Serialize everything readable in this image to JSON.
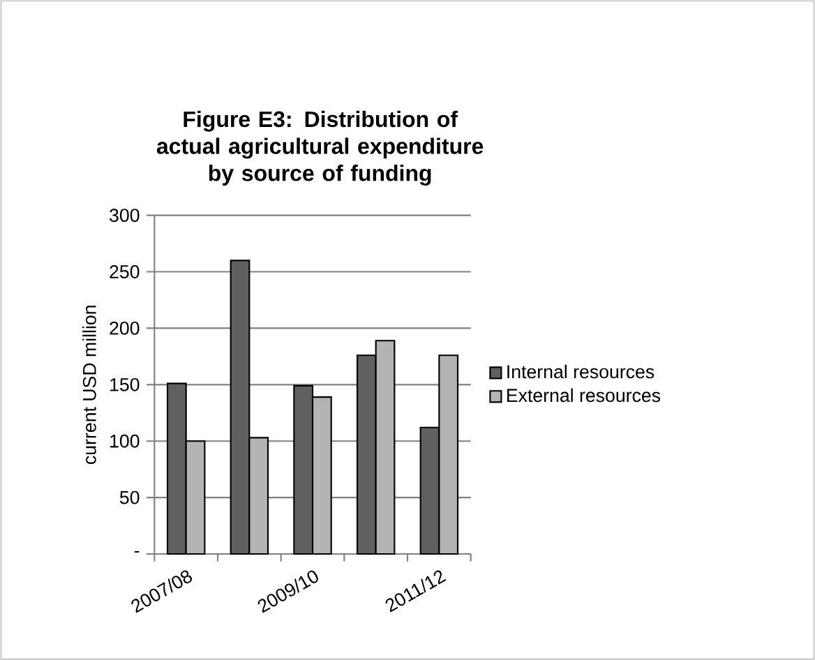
{
  "chart_data": {
    "type": "bar",
    "title": "**Figure E3: Distribution of actual agricultural expenditure by source of funding**",
    "ylabel": "current USD million",
    "categories": [
      "2007/08",
      null,
      "2009/10",
      null,
      "2011/12"
    ],
    "series": [
      {
        "name": "Internal resources",
        "color": "#606060",
        "values": [
          151,
          260,
          149,
          176,
          112
        ]
      },
      {
        "name": "External resources",
        "color": "#b4b4b4",
        "values": [
          100,
          103,
          139,
          189,
          176
        ]
      }
    ],
    "ylim": [
      0,
      300
    ],
    "yticks": [
      {
        "value": 0,
        "label": "-"
      },
      50,
      100,
      150,
      200,
      250,
      300
    ],
    "grid": "y",
    "legend": "right"
  }
}
